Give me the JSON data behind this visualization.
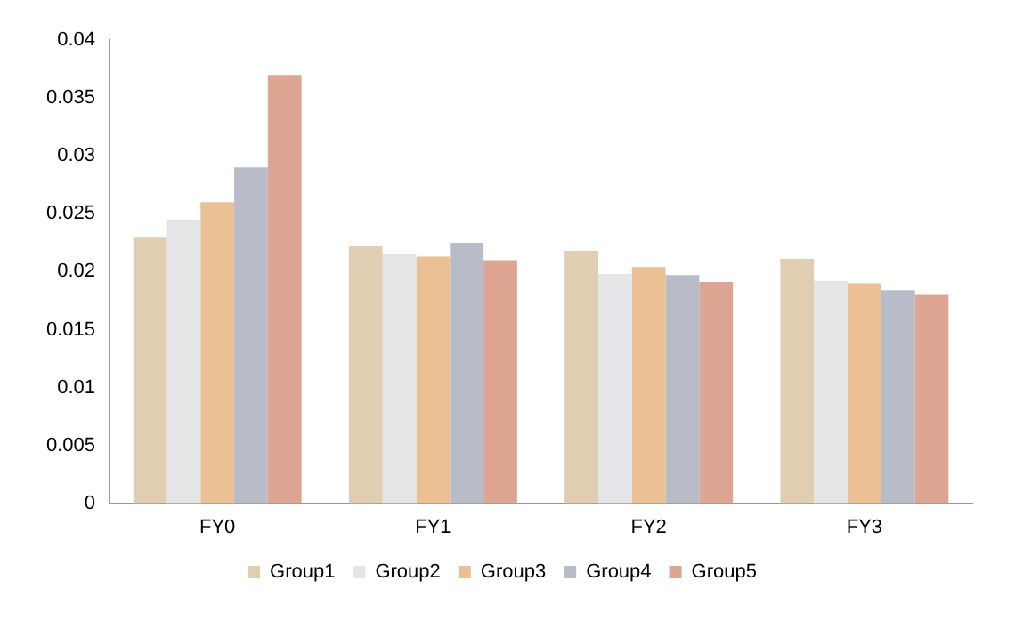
{
  "chart_data": {
    "type": "bar",
    "categories": [
      "FY0",
      "FY1",
      "FY2",
      "FY3"
    ],
    "series": [
      {
        "name": "Group1",
        "color": "#e1cdb1",
        "values": [
          0.023,
          0.0222,
          0.0218,
          0.0211
        ]
      },
      {
        "name": "Group2",
        "color": "#e4e5e7",
        "values": [
          0.0245,
          0.0215,
          0.0198,
          0.0192
        ]
      },
      {
        "name": "Group3",
        "color": "#ecc095",
        "values": [
          0.026,
          0.0213,
          0.0204,
          0.019
        ]
      },
      {
        "name": "Group4",
        "color": "#b8bcc8",
        "values": [
          0.029,
          0.0225,
          0.0197,
          0.0184
        ]
      },
      {
        "name": "Group5",
        "color": "#dea593",
        "values": [
          0.037,
          0.021,
          0.0191,
          0.018
        ]
      }
    ],
    "ylim": [
      0,
      0.04
    ],
    "yticks": [
      0,
      0.005,
      0.01,
      0.015,
      0.02,
      0.025,
      0.03,
      0.035,
      0.04
    ],
    "grid": false,
    "legend": "bottom"
  }
}
